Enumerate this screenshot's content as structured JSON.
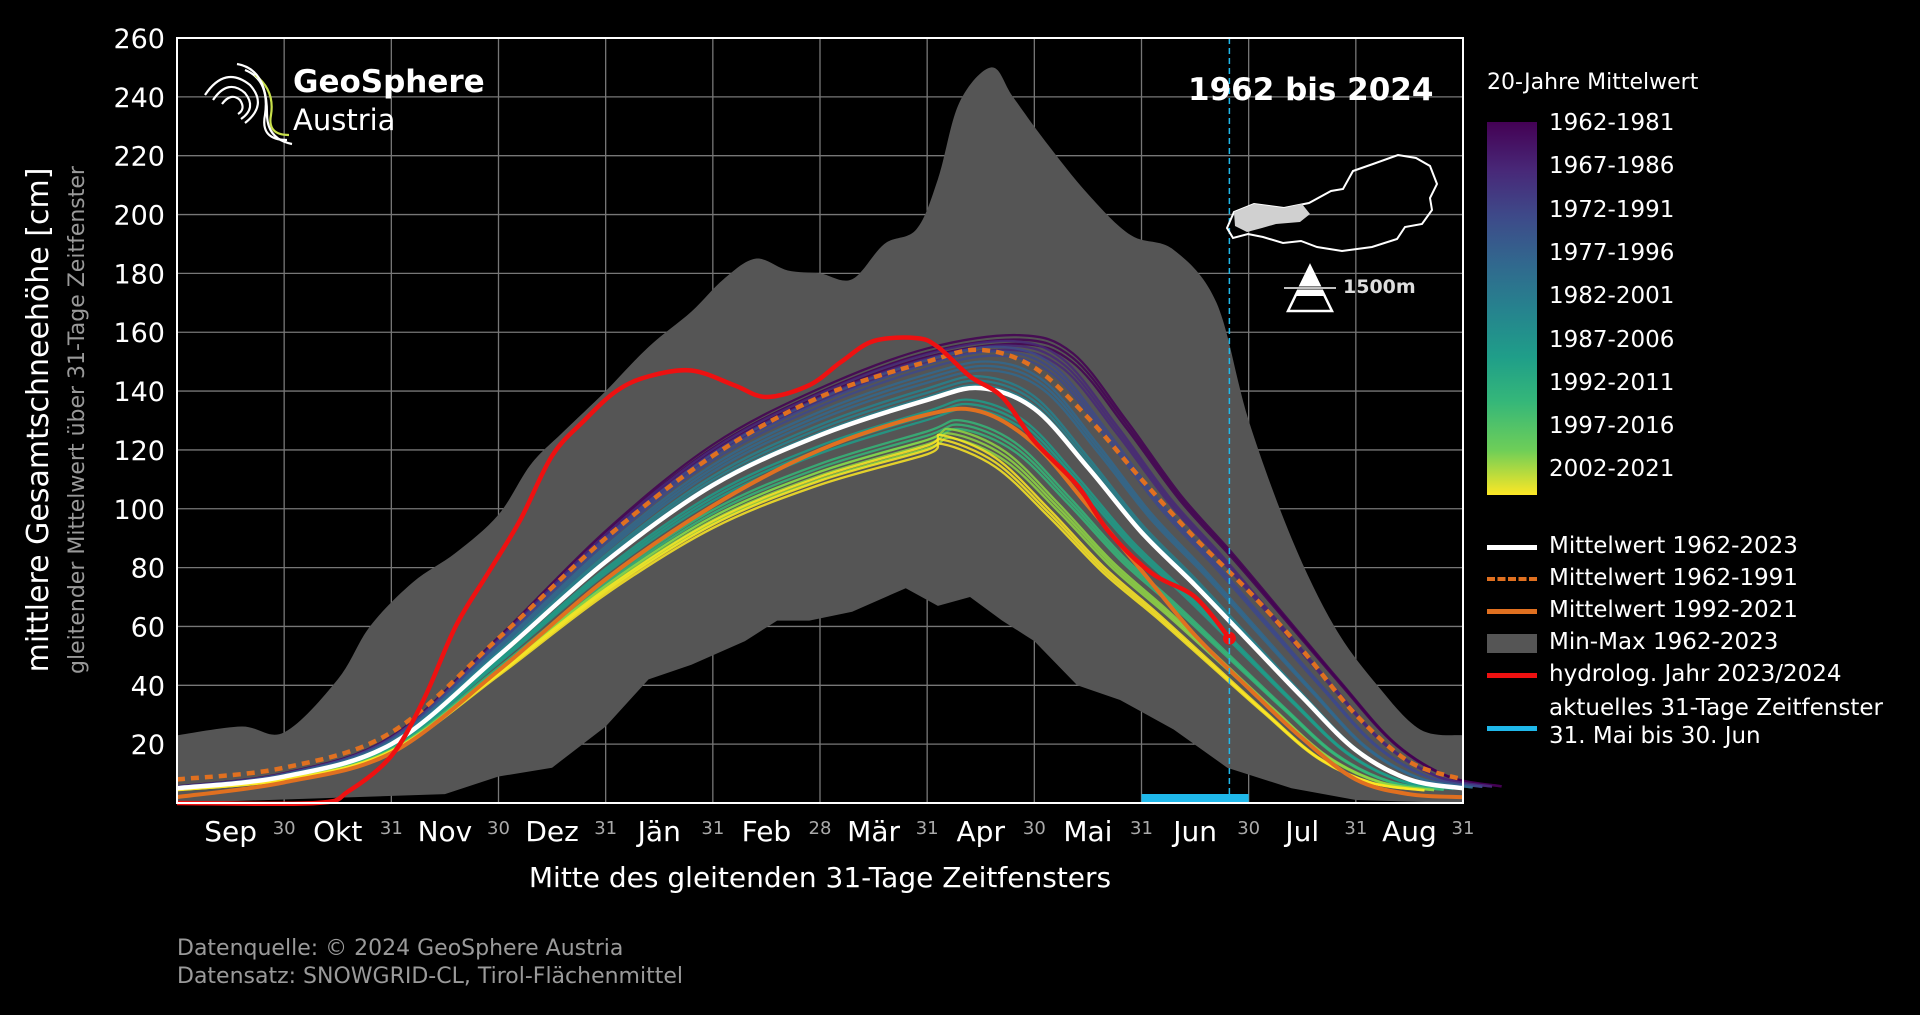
{
  "header": {
    "logo_name": "GeoSphere",
    "logo_sub": "Austria",
    "period": "1962 bis 2024",
    "elevation": "1500m"
  },
  "legend": {
    "colorbar_title": "20-Jahre Mittelwert",
    "colorbar_ticks": [
      "1962-1981",
      "1967-1986",
      "1972-1991",
      "1977-1996",
      "1982-2001",
      "1987-2006",
      "1992-2011",
      "1997-2016",
      "2002-2021"
    ],
    "colors": {
      "mean_all": "#ffffff",
      "mean_early": "#e07020",
      "mean_late": "#e07020",
      "minmax": "#555555",
      "current": "#ee1111",
      "window": "#1fb8ea"
    },
    "entries": [
      {
        "label": "Mittelwert 1962-2023",
        "key": "mean_all"
      },
      {
        "label": "Mittelwert 1962-1991",
        "key": "mean_early"
      },
      {
        "label": "Mittelwert 1992-2021",
        "key": "mean_late"
      },
      {
        "label": "Min-Max 1962-2023",
        "key": "minmax"
      },
      {
        "label": "hydrolog. Jahr 2023/2024",
        "key": "current"
      },
      {
        "label": "aktuelles 31-Tage Zeitfenster",
        "label2": "31. Mai bis 30. Jun",
        "key": "window"
      }
    ]
  },
  "footer": {
    "line1": "Datenquelle: © 2024 GeoSphere Austria",
    "line2": "Datensatz: SNOWGRID-CL, Tirol-Flächenmittel"
  },
  "chart_data": {
    "type": "line",
    "ylabel": "mittlere Gesamtschneehöhe [cm]",
    "ylabel2": "gleitender Mittelwert über 31-Tage Zeitfenster",
    "xlabel": "Mitte des gleitenden 31-Tage Zeitfensters",
    "ylim": [
      0,
      260
    ],
    "yticks": [
      20,
      40,
      60,
      80,
      100,
      120,
      140,
      160,
      180,
      200,
      220,
      240,
      260
    ],
    "months": [
      "Sep",
      "Okt",
      "Nov",
      "Dez",
      "Jän",
      "Feb",
      "Mär",
      "Apr",
      "Mai",
      "Jun",
      "Jul",
      "Aug"
    ],
    "month_end_labels": [
      "30",
      "31",
      "30",
      "31",
      "31",
      "28",
      "31",
      "30",
      "31",
      "30",
      "31",
      "31"
    ],
    "x_unit": "Monat (0 = Anfang Sep, 12 = Ende Aug)",
    "xlim": [
      0,
      12
    ],
    "grid": true,
    "min": [
      [
        0,
        23
      ],
      [
        0.6,
        26
      ],
      [
        1,
        24
      ],
      [
        1.5,
        42
      ],
      [
        1.8,
        60
      ],
      [
        2.2,
        75
      ],
      [
        2.6,
        85
      ],
      [
        3,
        98
      ],
      [
        3.3,
        115
      ],
      [
        3.6,
        126
      ],
      [
        4,
        140
      ],
      [
        4.4,
        155
      ],
      [
        4.8,
        167
      ],
      [
        5.1,
        178
      ],
      [
        5.4,
        185
      ],
      [
        5.7,
        181
      ],
      [
        6,
        180
      ],
      [
        6.3,
        178
      ],
      [
        6.6,
        190
      ],
      [
        6.9,
        195
      ],
      [
        7.1,
        212
      ],
      [
        7.3,
        238
      ],
      [
        7.6,
        250
      ],
      [
        7.8,
        240
      ],
      [
        8.1,
        225
      ],
      [
        8.5,
        207
      ],
      [
        8.9,
        193
      ],
      [
        9.3,
        188
      ],
      [
        9.7,
        170
      ],
      [
        10,
        130
      ],
      [
        10.4,
        90
      ],
      [
        10.8,
        60
      ],
      [
        11.2,
        40
      ],
      [
        11.6,
        25
      ],
      [
        12,
        23
      ]
    ],
    "max_low": [
      [
        0,
        0
      ],
      [
        2.5,
        3
      ],
      [
        3,
        9
      ],
      [
        3.5,
        12
      ],
      [
        4,
        26
      ],
      [
        4.4,
        42
      ],
      [
        4.8,
        47
      ],
      [
        5.3,
        55
      ],
      [
        5.6,
        62
      ],
      [
        5.9,
        62
      ],
      [
        6.3,
        65
      ],
      [
        6.8,
        73
      ],
      [
        7.1,
        67
      ],
      [
        7.4,
        70
      ],
      [
        7.7,
        62
      ],
      [
        8,
        55
      ],
      [
        8.4,
        40
      ],
      [
        8.8,
        35
      ],
      [
        9.3,
        25
      ],
      [
        9.8,
        12
      ],
      [
        10.4,
        5
      ],
      [
        11,
        1
      ],
      [
        12,
        0
      ]
    ],
    "series": [
      {
        "name": "Mittelwert 1962-2023",
        "values": [
          [
            0,
            5
          ],
          [
            1,
            9
          ],
          [
            2,
            20
          ],
          [
            3,
            50
          ],
          [
            4,
            82
          ],
          [
            5,
            108
          ],
          [
            6,
            125
          ],
          [
            7,
            137
          ],
          [
            7.5,
            141
          ],
          [
            8,
            134
          ],
          [
            8.5,
            114
          ],
          [
            9,
            92
          ],
          [
            9.5,
            74
          ],
          [
            10,
            55
          ],
          [
            10.5,
            36
          ],
          [
            11,
            18
          ],
          [
            11.5,
            8
          ],
          [
            12,
            5
          ]
        ]
      },
      {
        "name": "Mittelwert 1962-1991",
        "values": [
          [
            0,
            8
          ],
          [
            1,
            12
          ],
          [
            2,
            24
          ],
          [
            3,
            56
          ],
          [
            4,
            90
          ],
          [
            5,
            118
          ],
          [
            6,
            138
          ],
          [
            7,
            150
          ],
          [
            7.5,
            154
          ],
          [
            8,
            148
          ],
          [
            8.5,
            131
          ],
          [
            9,
            110
          ],
          [
            9.5,
            90
          ],
          [
            10,
            72
          ],
          [
            10.5,
            52
          ],
          [
            11,
            30
          ],
          [
            11.5,
            14
          ],
          [
            12,
            8
          ]
        ]
      },
      {
        "name": "Mittelwert 1992-2021",
        "values": [
          [
            0,
            2
          ],
          [
            1,
            7
          ],
          [
            2,
            17
          ],
          [
            3,
            45
          ],
          [
            4,
            76
          ],
          [
            5,
            101
          ],
          [
            6,
            120
          ],
          [
            7,
            132
          ],
          [
            7.5,
            133
          ],
          [
            8,
            122
          ],
          [
            8.5,
            101
          ],
          [
            9,
            79
          ],
          [
            9.5,
            57
          ],
          [
            10,
            39
          ],
          [
            10.5,
            22
          ],
          [
            11,
            8
          ],
          [
            11.5,
            3
          ],
          [
            12,
            2
          ]
        ]
      },
      {
        "name": "hydrolog. Jahr 2023/2024",
        "values": [
          [
            0,
            0
          ],
          [
            1.3,
            0
          ],
          [
            1.6,
            4
          ],
          [
            2,
            16
          ],
          [
            2.3,
            35
          ],
          [
            2.6,
            60
          ],
          [
            2.9,
            78
          ],
          [
            3.2,
            96
          ],
          [
            3.5,
            118
          ],
          [
            3.8,
            130
          ],
          [
            4.1,
            140
          ],
          [
            4.4,
            145
          ],
          [
            4.8,
            147
          ],
          [
            5.2,
            142
          ],
          [
            5.5,
            138
          ],
          [
            5.9,
            142
          ],
          [
            6.2,
            150
          ],
          [
            6.5,
            157
          ],
          [
            6.9,
            158
          ],
          [
            7.1,
            155
          ],
          [
            7.4,
            145
          ],
          [
            7.7,
            138
          ],
          [
            8,
            123
          ],
          [
            8.4,
            108
          ],
          [
            8.7,
            92
          ],
          [
            9.1,
            78
          ],
          [
            9.5,
            70
          ],
          [
            9.82,
            56
          ]
        ]
      }
    ],
    "mean_20yr_periods": [
      "1962-1981",
      "1967-1986",
      "1972-1991",
      "1977-1996",
      "1982-2001",
      "1987-2006",
      "1992-2011",
      "1997-2016",
      "2002-2021"
    ],
    "mean_20yr_peaks": [
      159,
      157,
      155,
      150,
      145,
      137,
      130,
      127,
      125
    ],
    "window": {
      "from": "31. Mai",
      "to": "30. Jun"
    },
    "current_day": 9.82
  }
}
